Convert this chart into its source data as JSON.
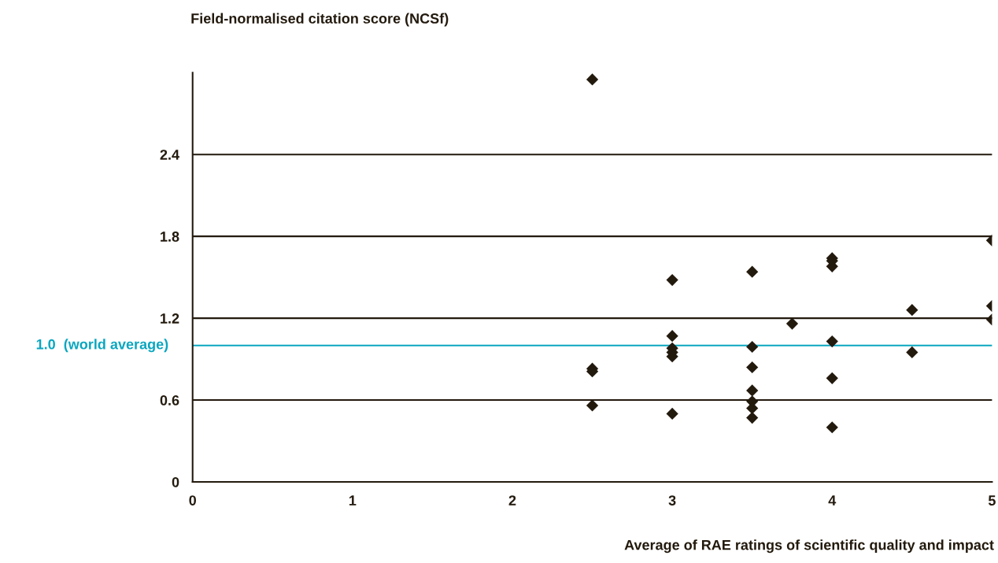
{
  "chart_data": {
    "type": "scatter",
    "ylabel": "Field-normalised citation score (NCSf)",
    "xlabel": "Average of RAE ratings of scientific quality and impact",
    "x": [
      2.5,
      2.5,
      2.5,
      2.5,
      3,
      3,
      3,
      3,
      3,
      3,
      3.5,
      3.5,
      3.5,
      3.5,
      3.5,
      3.5,
      3.5,
      3.75,
      4,
      4,
      4,
      4,
      4,
      4,
      4.5,
      4.5,
      5,
      5,
      5
    ],
    "values": [
      2.95,
      0.83,
      0.81,
      0.56,
      1.48,
      1.07,
      0.98,
      0.95,
      0.92,
      0.5,
      1.54,
      0.99,
      0.84,
      0.67,
      0.59,
      0.54,
      0.47,
      1.16,
      1.64,
      1.62,
      1.58,
      1.03,
      0.76,
      0.4,
      1.26,
      0.95,
      1.77,
      1.29,
      1.19
    ],
    "color": "#231a0e",
    "marker": "diamond",
    "xlim": [
      0,
      5
    ],
    "xticks": [
      0,
      1,
      2,
      3,
      4,
      5
    ],
    "ylim": [
      0,
      3
    ],
    "yticks": [
      0,
      0.6,
      1.2,
      1.8,
      2.4
    ],
    "grid": "y",
    "ref_lines": [
      {
        "axis": "y",
        "value": 1.0,
        "label": "1.0  (world average)",
        "color": "#0aa6c0"
      }
    ]
  }
}
